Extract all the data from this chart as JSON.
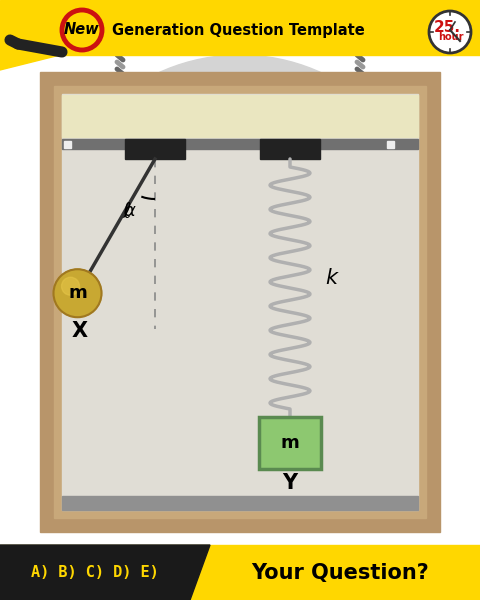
{
  "bg_color": "#ffffff",
  "yellow_color": "#FFD700",
  "black_color": "#1a1a1a",
  "wall_color": "#b8956a",
  "wall_inner": "#c8a87a",
  "frame_interior": "#e0ddd5",
  "ceiling_color": "#eae6c0",
  "rail_color": "#707070",
  "block_color": "#222222",
  "floor_color": "#909090",
  "spring_color": "#b0b0b0",
  "mass_green": "#8dc870",
  "mass_border": "#5a8a50",
  "bob_color": "#c8a832",
  "bob_border": "#a07820",
  "rope_dark": "#666666",
  "rope_light": "#999999",
  "connector_color": "#cccccc",
  "ellipse_color": "#d4d4d4",
  "title_text": "Generation Question Template",
  "new_text": "New",
  "hour_num": "25.",
  "hour_sub": "hour",
  "bottom_left": "A) B) C) D) E)",
  "bottom_right": "Your Question?",
  "label_ell": "ℓ",
  "label_alpha": "α",
  "label_m": "m",
  "label_X": "X",
  "label_k": "k",
  "label_Y": "Y"
}
